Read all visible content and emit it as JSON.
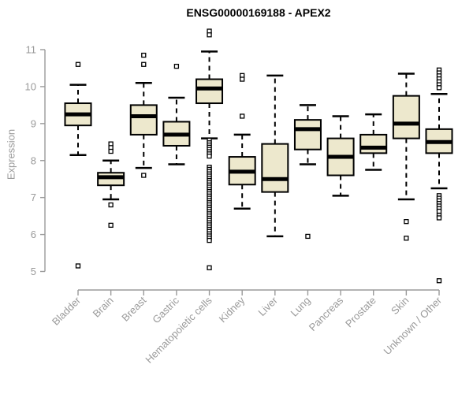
{
  "chart_data": {
    "type": "boxplot",
    "title": "ENSG00000169188 - APEX2",
    "ylabel": "Expression",
    "xlabel": "",
    "grid": false,
    "legend": "none",
    "ylim": [
      4.6,
      11.7
    ],
    "yticks": [
      5,
      6,
      7,
      8,
      9,
      10,
      11
    ],
    "categories": [
      "Bladder",
      "Brain",
      "Breast",
      "Gastric",
      "Hematopoietic cells",
      "Kidney",
      "Liver",
      "Lung",
      "Pancreas",
      "Prostate",
      "Skin",
      "Unknown / Other"
    ],
    "series": [
      {
        "name": "Bladder",
        "low": 8.15,
        "q1": 8.95,
        "median": 9.25,
        "q3": 9.55,
        "high": 10.05,
        "outliers": [
          10.6,
          5.15
        ]
      },
      {
        "name": "Brain",
        "low": 6.95,
        "q1": 7.33,
        "median": 7.55,
        "q3": 7.67,
        "high": 8.0,
        "outliers": [
          8.45,
          8.35,
          8.25,
          6.8,
          6.25
        ]
      },
      {
        "name": "Breast",
        "low": 7.8,
        "q1": 8.7,
        "median": 9.2,
        "q3": 9.5,
        "high": 10.1,
        "outliers": [
          10.85,
          10.6,
          7.6
        ]
      },
      {
        "name": "Gastric",
        "low": 7.9,
        "q1": 8.4,
        "median": 8.7,
        "q3": 9.05,
        "high": 9.7,
        "outliers": [
          10.55
        ]
      },
      {
        "name": "Hematopoietic cells",
        "low": 8.6,
        "q1": 9.55,
        "median": 9.95,
        "q3": 10.2,
        "high": 10.95,
        "outliers": [
          11.5,
          11.4,
          8.55,
          8.48,
          8.42,
          8.36,
          8.3,
          8.24,
          8.18,
          8.12,
          7.82,
          7.76,
          7.7,
          7.64,
          7.58,
          7.52,
          7.46,
          7.4,
          7.34,
          7.28,
          7.22,
          7.16,
          7.1,
          7.04,
          6.98,
          6.92,
          6.86,
          6.8,
          6.74,
          6.68,
          6.62,
          6.56,
          6.5,
          6.44,
          6.38,
          6.32,
          6.26,
          6.2,
          6.14,
          6.08,
          6.02,
          5.96,
          5.9,
          5.84,
          5.1
        ]
      },
      {
        "name": "Kidney",
        "low": 6.7,
        "q1": 7.35,
        "median": 7.7,
        "q3": 8.1,
        "high": 8.7,
        "outliers": [
          10.3,
          10.2,
          9.2
        ]
      },
      {
        "name": "Liver",
        "low": 5.95,
        "q1": 7.15,
        "median": 7.5,
        "q3": 8.45,
        "high": 10.3,
        "outliers": []
      },
      {
        "name": "Lung",
        "low": 7.9,
        "q1": 8.3,
        "median": 8.85,
        "q3": 9.1,
        "high": 9.5,
        "outliers": [
          5.95
        ]
      },
      {
        "name": "Pancreas",
        "low": 7.05,
        "q1": 7.6,
        "median": 8.1,
        "q3": 8.6,
        "high": 9.2,
        "outliers": []
      },
      {
        "name": "Prostate",
        "low": 7.75,
        "q1": 8.2,
        "median": 8.35,
        "q3": 8.7,
        "high": 9.25,
        "outliers": []
      },
      {
        "name": "Skin",
        "low": 6.95,
        "q1": 8.6,
        "median": 9.0,
        "q3": 9.75,
        "high": 10.35,
        "outliers": [
          6.35,
          5.9
        ]
      },
      {
        "name": "Unknown / Other",
        "low": 7.25,
        "q1": 8.2,
        "median": 8.5,
        "q3": 8.85,
        "high": 9.8,
        "outliers": [
          10.45,
          10.37,
          10.29,
          10.21,
          10.13,
          10.05,
          9.97,
          7.05,
          6.98,
          6.91,
          6.84,
          6.77,
          6.7,
          6.63,
          6.52,
          6.45,
          4.75
        ]
      }
    ],
    "colors": {
      "box_fill": "#EDE8CD",
      "box_stroke": "#000000",
      "whisker": "#000000",
      "outlier_fill": "#FFFFFF",
      "axis": "#9A9A9A",
      "tick_label": "#9A9A9A",
      "title": "#000000",
      "background": "#FFFFFF"
    }
  }
}
